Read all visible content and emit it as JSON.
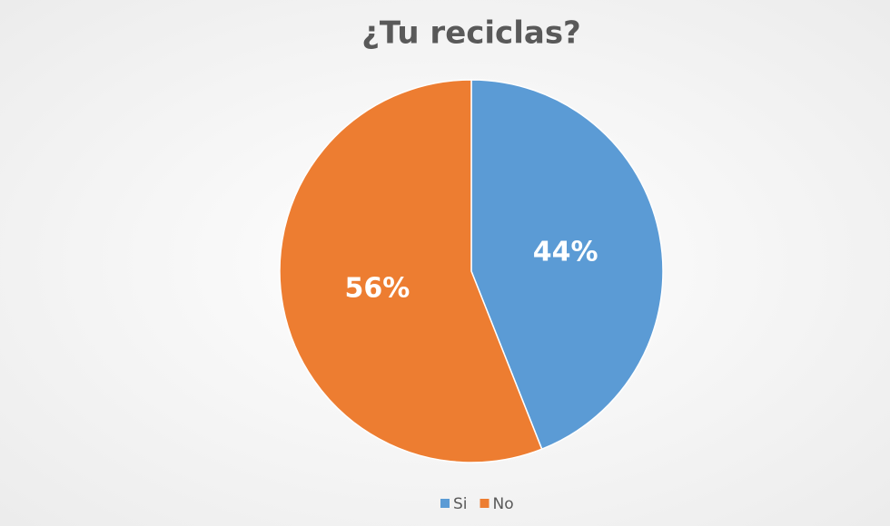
{
  "chart_data": {
    "type": "pie",
    "title": "¿Tu reciclas?",
    "categories": [
      "Si",
      "No"
    ],
    "values": [
      44,
      56
    ],
    "value_labels": [
      "44%",
      "56%"
    ],
    "colors": [
      "#5b9bd5",
      "#ed7d31"
    ],
    "legend": "bottom"
  }
}
